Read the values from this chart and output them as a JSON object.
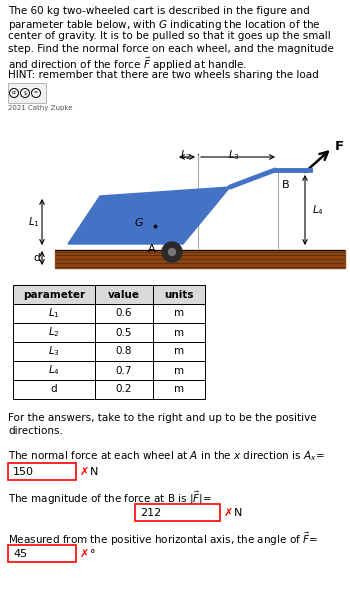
{
  "title_lines": [
    "The 60 kg two-wheeled cart is described in the figure and",
    "parameter table below, with $G$ indicating the location of the",
    "center of gravity. It is to be pulled so that it goes up the small",
    "step. Find the normal force on each wheel, and the magnitude",
    "and direction of the force $\\vec{F}$ applied at handle."
  ],
  "hint_line": "HINT: remember that there are two wheels sharing the load",
  "cc_year": "2021 Cathy Zupke",
  "table_headers": [
    "parameter",
    "value",
    "units"
  ],
  "table_rows": [
    [
      "$L_1$",
      "0.6",
      "m"
    ],
    [
      "$L_2$",
      "0.5",
      "m"
    ],
    [
      "$L_3$",
      "0.8",
      "m"
    ],
    [
      "$L_4$",
      "0.7",
      "m"
    ],
    [
      "d",
      "0.2",
      "m"
    ]
  ],
  "ans_intro": [
    "For the answers, take to the right and up to be the positive",
    "directions."
  ],
  "ans_line1": "The normal force at each wheel at $A$ in the $x$ direction is $A_x$=",
  "ans_line2": "The magnitude of the force at B is $|\\vec{F}|$=",
  "ans_line3": "Measured from the positive horizontal axis, the angle of $\\vec{F}$=",
  "box1": "150",
  "box2": "212",
  "box3": "45",
  "unit1": "N",
  "unit2": "N",
  "unit3": "°",
  "bg_color": "#ffffff",
  "cart_color": "#4472c4",
  "ground_color_main": "#8B4513",
  "ground_color_dark": "#5a2d0c",
  "wheel_color": "#2a2a2a",
  "wheel_hub": "#777777"
}
